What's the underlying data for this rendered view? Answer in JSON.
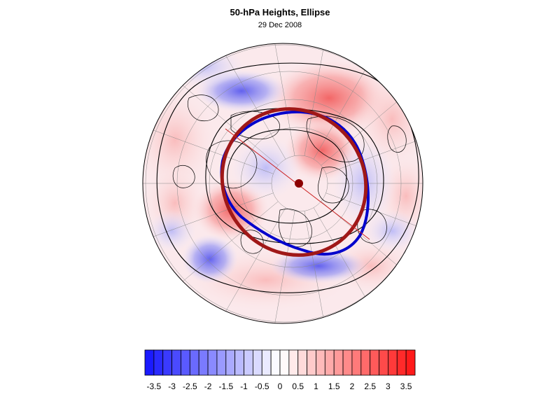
{
  "title": "50-hPa Heights, Ellipse",
  "date": "29 Dec 2008",
  "colors": {
    "negative_max": "#1a1aff",
    "positive_max": "#ff1a1a",
    "ellipse_blue": "#0000cc",
    "ellipse_red": "#a01818",
    "center_marker": "#8b0000"
  },
  "colorbar": {
    "min": -3.75,
    "max": 3.75,
    "step": 0.25,
    "tick_labels": [
      "-3.5",
      "-3",
      "-2.5",
      "-2",
      "-1.5",
      "-1",
      "-0.5",
      "0",
      "0.5",
      "1",
      "1.5",
      "2",
      "2.5",
      "3",
      "3.5"
    ]
  }
}
